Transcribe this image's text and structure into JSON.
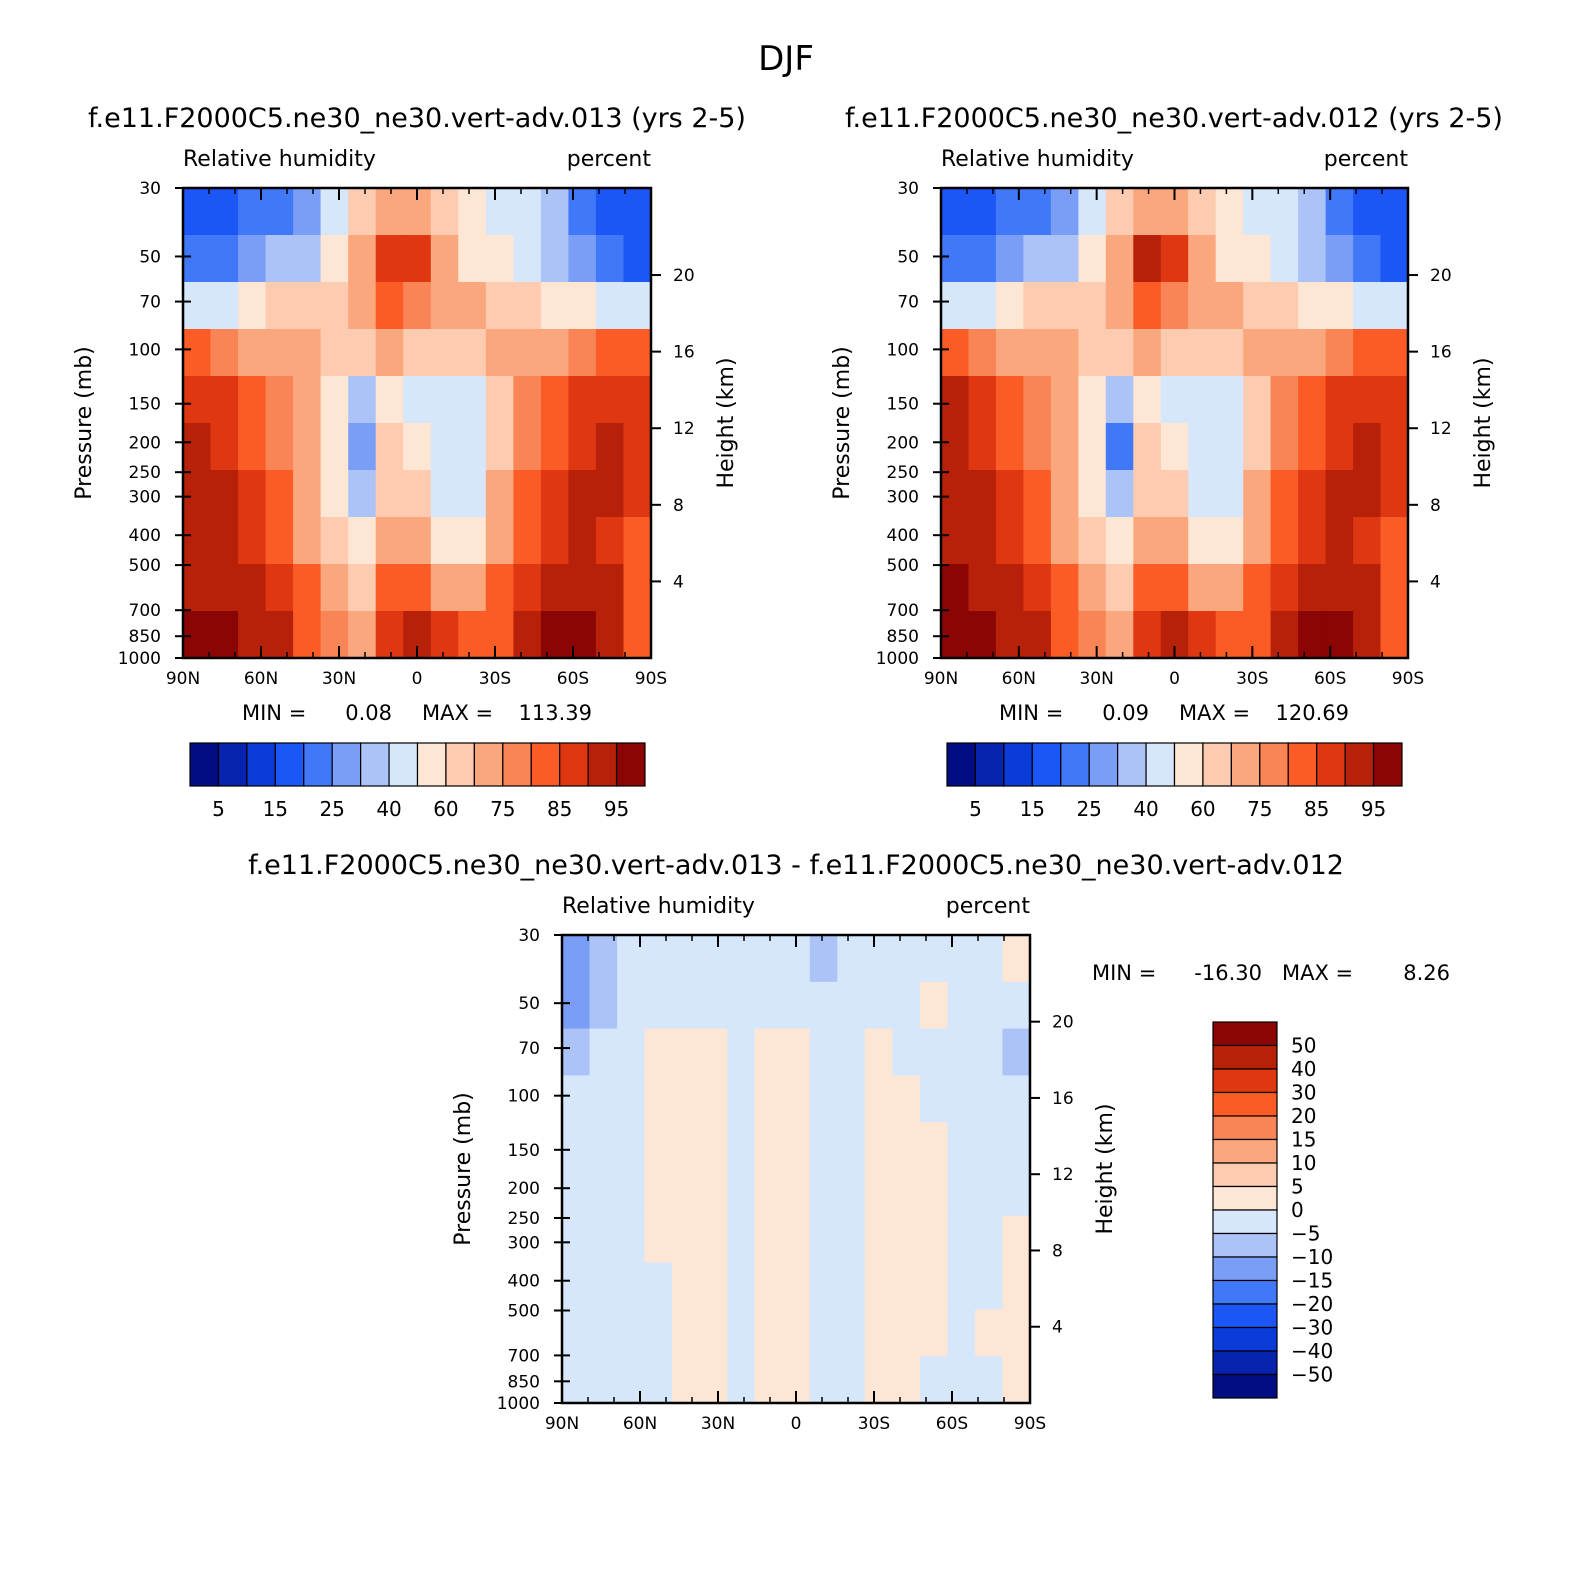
{
  "figure_title": "DJF",
  "colors": {
    "rh_palette": [
      "#010d80",
      "#0624ad",
      "#0b3bd8",
      "#1c56f7",
      "#4078f8",
      "#7a9ef6",
      "#abc3f6",
      "#d6e6fb",
      "#fde6d4",
      "#fccbb0",
      "#fba77e",
      "#f98455",
      "#fb5c26",
      "#df3712",
      "#b7210a",
      "#8b0505"
    ],
    "diff_palette": [
      "#010d80",
      "#0624ad",
      "#0b3bd8",
      "#1c56f7",
      "#4078f8",
      "#7a9ef6",
      "#abc3f6",
      "#d6e6fb",
      "#fde6d4",
      "#fccbb0",
      "#fba77e",
      "#f98455",
      "#fb5c26",
      "#df3712",
      "#b7210a",
      "#8b0505"
    ]
  },
  "chart_data": [
    {
      "type": "heatmap",
      "title": "f.e11.F2000C5.ne30_ne30.vert-adv.013 (yrs 2-5)",
      "left_string": "Relative humidity",
      "right_string": "percent",
      "ylabel": "Pressure (mb)",
      "ylabel_right": "Height (km)",
      "x_ticks": [
        "90N",
        "60N",
        "30N",
        "0",
        "30S",
        "60S",
        "90S"
      ],
      "x_values": [
        90,
        60,
        30,
        0,
        -30,
        -60,
        -90
      ],
      "y_ticks": [
        "30",
        "50",
        "70",
        "100",
        "150",
        "200",
        "250",
        "300",
        "400",
        "500",
        "700",
        "850",
        "1000"
      ],
      "y_values": [
        30,
        50,
        70,
        100,
        150,
        200,
        250,
        300,
        400,
        500,
        700,
        850,
        1000
      ],
      "y_right_ticks": [
        "20",
        "16",
        "12",
        "8",
        "4"
      ],
      "y_right_values": [
        20,
        16,
        12,
        8,
        4
      ],
      "min_label": "MIN =",
      "min_value": "0.08",
      "max_label": "MAX =",
      "max_value": "113.39",
      "colorbar_levels": [
        5,
        10,
        15,
        20,
        25,
        30,
        40,
        50,
        60,
        65,
        75,
        80,
        85,
        90,
        95
      ],
      "colorbar_tick_labels": [
        "5",
        "15",
        "25",
        "40",
        "60",
        "75",
        "85",
        "95"
      ],
      "grid": [
        [
          16,
          18,
          20,
          22,
          28,
          45,
          60,
          72,
          70,
          62,
          55,
          48,
          40,
          30,
          22,
          18,
          16
        ],
        [
          20,
          22,
          26,
          30,
          38,
          52,
          66,
          88,
          85,
          70,
          58,
          50,
          42,
          35,
          26,
          20,
          18
        ],
        [
          42,
          48,
          55,
          60,
          62,
          64,
          72,
          80,
          78,
          70,
          68,
          64,
          62,
          58,
          52,
          46,
          40
        ],
        [
          80,
          78,
          74,
          70,
          66,
          62,
          60,
          66,
          64,
          60,
          62,
          66,
          70,
          74,
          78,
          80,
          82
        ],
        [
          88,
          86,
          82,
          76,
          68,
          58,
          34,
          52,
          48,
          44,
          48,
          60,
          76,
          82,
          86,
          88,
          88
        ],
        [
          90,
          88,
          84,
          78,
          68,
          56,
          28,
          60,
          56,
          42,
          46,
          62,
          78,
          84,
          88,
          90,
          86
        ],
        [
          92,
          90,
          86,
          80,
          70,
          58,
          38,
          64,
          60,
          44,
          48,
          66,
          80,
          86,
          90,
          90,
          86
        ],
        [
          92,
          90,
          88,
          82,
          72,
          62,
          50,
          70,
          66,
          52,
          56,
          70,
          84,
          88,
          90,
          88,
          82
        ],
        [
          94,
          92,
          90,
          86,
          80,
          72,
          64,
          80,
          82,
          70,
          72,
          80,
          88,
          92,
          94,
          90,
          80
        ],
        [
          102,
          98,
          94,
          90,
          84,
          76,
          70,
          88,
          92,
          88,
          84,
          82,
          90,
          96,
          104,
          94,
          80
        ]
      ]
    },
    {
      "type": "heatmap",
      "title": "f.e11.F2000C5.ne30_ne30.vert-adv.012 (yrs 2-5)",
      "left_string": "Relative humidity",
      "right_string": "percent",
      "ylabel": "Pressure (mb)",
      "ylabel_right": "Height (km)",
      "x_ticks": [
        "90N",
        "60N",
        "30N",
        "0",
        "30S",
        "60S",
        "90S"
      ],
      "x_values": [
        90,
        60,
        30,
        0,
        -30,
        -60,
        -90
      ],
      "y_ticks": [
        "30",
        "50",
        "70",
        "100",
        "150",
        "200",
        "250",
        "300",
        "400",
        "500",
        "700",
        "850",
        "1000"
      ],
      "y_values": [
        30,
        50,
        70,
        100,
        150,
        200,
        250,
        300,
        400,
        500,
        700,
        850,
        1000
      ],
      "y_right_ticks": [
        "20",
        "16",
        "12",
        "8",
        "4"
      ],
      "y_right_values": [
        20,
        16,
        12,
        8,
        4
      ],
      "min_label": "MIN =",
      "min_value": "0.09",
      "max_label": "MAX =",
      "max_value": "120.69",
      "colorbar_levels": [
        5,
        10,
        15,
        20,
        25,
        30,
        40,
        50,
        60,
        65,
        75,
        80,
        85,
        90,
        95
      ],
      "colorbar_tick_labels": [
        "5",
        "15",
        "25",
        "40",
        "60",
        "75",
        "85",
        "95"
      ],
      "grid": [
        [
          16,
          18,
          20,
          22,
          28,
          45,
          60,
          74,
          72,
          62,
          55,
          48,
          40,
          30,
          22,
          18,
          16
        ],
        [
          20,
          22,
          26,
          30,
          38,
          52,
          66,
          90,
          86,
          70,
          58,
          50,
          42,
          35,
          26,
          20,
          18
        ],
        [
          44,
          48,
          55,
          60,
          62,
          64,
          72,
          80,
          78,
          70,
          68,
          64,
          62,
          58,
          52,
          46,
          40
        ],
        [
          82,
          78,
          74,
          70,
          66,
          62,
          60,
          66,
          64,
          60,
          62,
          66,
          70,
          74,
          78,
          80,
          82
        ],
        [
          90,
          86,
          82,
          76,
          68,
          58,
          30,
          52,
          48,
          44,
          48,
          60,
          76,
          82,
          86,
          88,
          88
        ],
        [
          92,
          88,
          84,
          78,
          68,
          56,
          24,
          60,
          56,
          42,
          46,
          62,
          78,
          84,
          88,
          90,
          86
        ],
        [
          92,
          90,
          86,
          80,
          70,
          58,
          36,
          64,
          60,
          44,
          48,
          66,
          80,
          86,
          90,
          90,
          86
        ],
        [
          94,
          90,
          88,
          82,
          72,
          62,
          50,
          70,
          66,
          52,
          56,
          70,
          84,
          88,
          90,
          88,
          82
        ],
        [
          96,
          92,
          90,
          86,
          80,
          72,
          64,
          80,
          82,
          70,
          72,
          80,
          88,
          92,
          94,
          90,
          80
        ],
        [
          108,
          100,
          94,
          90,
          84,
          76,
          70,
          88,
          92,
          88,
          84,
          82,
          90,
          96,
          106,
          94,
          80
        ]
      ]
    },
    {
      "type": "heatmap",
      "title": "f.e11.F2000C5.ne30_ne30.vert-adv.013 - f.e11.F2000C5.ne30_ne30.vert-adv.012",
      "left_string": "Relative humidity",
      "right_string": "percent",
      "ylabel": "Pressure (mb)",
      "ylabel_right": "Height (km)",
      "x_ticks": [
        "90N",
        "60N",
        "30N",
        "0",
        "30S",
        "60S",
        "90S"
      ],
      "x_values": [
        90,
        60,
        30,
        0,
        -30,
        -60,
        -90
      ],
      "y_ticks": [
        "30",
        "50",
        "70",
        "100",
        "150",
        "200",
        "250",
        "300",
        "400",
        "500",
        "700",
        "850",
        "1000"
      ],
      "y_values": [
        30,
        50,
        70,
        100,
        150,
        200,
        250,
        300,
        400,
        500,
        700,
        850,
        1000
      ],
      "y_right_ticks": [
        "20",
        "16",
        "12",
        "8",
        "4"
      ],
      "y_right_values": [
        20,
        16,
        12,
        8,
        4
      ],
      "min_label": "MIN =",
      "min_value": "-16.30",
      "max_label": "MAX =",
      "max_value": "8.26",
      "colorbar_levels": [
        -50,
        -40,
        -30,
        -20,
        -15,
        -10,
        -5,
        0,
        5,
        10,
        15,
        20,
        30,
        40,
        50
      ],
      "colorbar_tick_labels": [
        "50",
        "40",
        "30",
        "20",
        "15",
        "10",
        "5",
        "0",
        "-5",
        "-10",
        "-15",
        "-20",
        "-30",
        "-40",
        "-50"
      ],
      "grid": [
        [
          -14,
          -6,
          -2,
          -1,
          -1,
          -1,
          -2,
          -1,
          -1,
          -6,
          -1,
          -1,
          -1,
          -1,
          -2,
          -1,
          1
        ],
        [
          -12,
          -8,
          -2,
          -1,
          -1,
          -1,
          -1,
          -1,
          -1,
          -1,
          -1,
          -1,
          -1,
          1,
          -1,
          -1,
          -1
        ],
        [
          -6,
          -3,
          -1,
          1,
          2,
          1,
          -1,
          1,
          2,
          -1,
          -1,
          1,
          -1,
          -1,
          -1,
          -1,
          -8
        ],
        [
          -2,
          -1,
          -1,
          2,
          2,
          2,
          -1,
          1,
          2,
          -1,
          -1,
          1,
          2,
          -1,
          -1,
          -1,
          -1
        ],
        [
          -1,
          -1,
          -1,
          2,
          3,
          2,
          -1,
          1,
          2,
          -1,
          -1,
          2,
          2,
          1,
          -1,
          -1,
          -1
        ],
        [
          -1,
          -1,
          -1,
          2,
          3,
          2,
          -1,
          1,
          2,
          -1,
          -1,
          2,
          2,
          1,
          -1,
          -1,
          -1
        ],
        [
          -1,
          -1,
          -1,
          2,
          2,
          1,
          -1,
          1,
          2,
          -1,
          -1,
          1,
          2,
          1,
          -1,
          -1,
          1
        ],
        [
          -1,
          -1,
          -1,
          -1,
          2,
          1,
          -1,
          1,
          2,
          -1,
          -1,
          1,
          2,
          1,
          -1,
          -1,
          1
        ],
        [
          -1,
          -1,
          -1,
          -1,
          2,
          1,
          -1,
          1,
          1,
          -1,
          -1,
          1,
          1,
          1,
          -1,
          1,
          1
        ],
        [
          -1,
          -1,
          -1,
          -1,
          1,
          1,
          -1,
          1,
          1,
          -1,
          -1,
          1,
          1,
          -1,
          -1,
          -1,
          1
        ]
      ]
    }
  ]
}
